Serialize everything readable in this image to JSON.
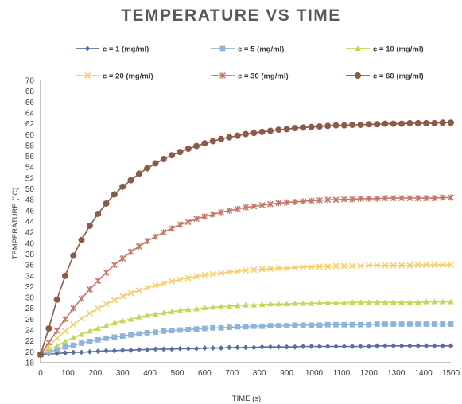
{
  "chart_data": {
    "type": "line",
    "title": "TEMPERATURE VS TIME",
    "xlabel": "TIME (s)",
    "ylabel": "TEMPERATURE (°C)",
    "xlim": [
      0,
      1500
    ],
    "ylim": [
      18,
      70
    ],
    "xticks": [
      0,
      100,
      200,
      300,
      400,
      500,
      600,
      700,
      800,
      900,
      1000,
      1100,
      1200,
      1300,
      1400,
      1500
    ],
    "yticks": [
      18,
      20,
      22,
      24,
      26,
      28,
      30,
      32,
      34,
      36,
      38,
      40,
      42,
      44,
      46,
      48,
      50,
      52,
      54,
      56,
      58,
      60,
      62,
      64,
      66,
      68,
      70
    ],
    "grid": false,
    "legend_position": "top",
    "x": [
      0,
      30,
      60,
      90,
      120,
      150,
      180,
      210,
      240,
      270,
      300,
      330,
      360,
      390,
      420,
      450,
      480,
      510,
      540,
      570,
      600,
      630,
      660,
      690,
      720,
      750,
      780,
      810,
      840,
      870,
      900,
      930,
      960,
      990,
      1020,
      1050,
      1080,
      1110,
      1140,
      1170,
      1200,
      1230,
      1260,
      1290,
      1320,
      1350,
      1380,
      1410,
      1440,
      1470,
      1500
    ],
    "series": [
      {
        "name": "c = 1 (mg/ml)",
        "color": "#5b6e9e",
        "marker": "diamond",
        "values": [
          19.5,
          19.6,
          19.7,
          19.8,
          19.9,
          19.9,
          20.0,
          20.1,
          20.2,
          20.2,
          20.3,
          20.3,
          20.4,
          20.4,
          20.5,
          20.5,
          20.5,
          20.6,
          20.6,
          20.6,
          20.7,
          20.7,
          20.7,
          20.8,
          20.8,
          20.8,
          20.8,
          20.9,
          20.9,
          20.9,
          20.9,
          20.9,
          21.0,
          21.0,
          21.0,
          21.0,
          21.0,
          21.0,
          21.0,
          21.0,
          21.0,
          21.1,
          21.1,
          21.1,
          21.1,
          21.1,
          21.1,
          21.1,
          21.1,
          21.1,
          21.1
        ]
      },
      {
        "name": "c = 5 (mg/ml)",
        "color": "#8fb3d9",
        "marker": "square",
        "values": [
          19.5,
          20.0,
          20.4,
          20.9,
          21.2,
          21.6,
          21.9,
          22.2,
          22.5,
          22.7,
          22.9,
          23.1,
          23.3,
          23.5,
          23.6,
          23.8,
          23.9,
          24.0,
          24.1,
          24.2,
          24.3,
          24.4,
          24.4,
          24.5,
          24.6,
          24.6,
          24.7,
          24.7,
          24.8,
          24.8,
          24.8,
          24.9,
          24.9,
          24.9,
          24.9,
          25.0,
          25.0,
          25.0,
          25.0,
          25.0,
          25.0,
          25.1,
          25.1,
          25.1,
          25.1,
          25.1,
          25.1,
          25.1,
          25.1,
          25.1,
          25.1
        ]
      },
      {
        "name": "c = 10 (mg/ml)",
        "color": "#c5d65a",
        "marker": "triangle",
        "values": [
          19.5,
          20.3,
          21.1,
          21.9,
          22.6,
          23.2,
          23.8,
          24.3,
          24.8,
          25.3,
          25.7,
          26.0,
          26.4,
          26.7,
          26.9,
          27.2,
          27.4,
          27.6,
          27.8,
          27.9,
          28.1,
          28.2,
          28.3,
          28.4,
          28.5,
          28.6,
          28.6,
          28.7,
          28.8,
          28.8,
          28.8,
          28.9,
          28.9,
          28.9,
          29.0,
          29.0,
          29.0,
          29.0,
          29.1,
          29.1,
          29.1,
          29.1,
          29.1,
          29.1,
          29.1,
          29.1,
          29.1,
          29.2,
          29.2,
          29.2,
          29.2
        ]
      },
      {
        "name": "c = 20 (mg/ml)",
        "color": "#f6cf6b",
        "marker": "x",
        "values": [
          19.5,
          21.1,
          22.5,
          23.8,
          25.0,
          26.1,
          27.1,
          28.0,
          28.8,
          29.5,
          30.2,
          30.8,
          31.3,
          31.8,
          32.2,
          32.6,
          33.0,
          33.3,
          33.6,
          33.9,
          34.1,
          34.3,
          34.5,
          34.7,
          34.8,
          35.0,
          35.1,
          35.2,
          35.3,
          35.4,
          35.4,
          35.5,
          35.6,
          35.6,
          35.7,
          35.7,
          35.8,
          35.8,
          35.8,
          35.8,
          35.9,
          35.9,
          35.9,
          35.9,
          35.9,
          35.9,
          36.0,
          36.0,
          36.0,
          36.0,
          36.0
        ]
      },
      {
        "name": "c = 30 (mg/ml)",
        "color": "#c4776a",
        "marker": "star",
        "values": [
          19.5,
          21.7,
          23.9,
          26.0,
          28.0,
          29.8,
          31.5,
          33.1,
          34.6,
          36.0,
          37.2,
          38.4,
          39.4,
          40.4,
          41.2,
          42.0,
          42.7,
          43.4,
          43.9,
          44.5,
          44.9,
          45.3,
          45.7,
          46.0,
          46.3,
          46.6,
          46.8,
          47.0,
          47.2,
          47.4,
          47.5,
          47.6,
          47.7,
          47.8,
          47.9,
          48.0,
          48.0,
          48.1,
          48.1,
          48.2,
          48.2,
          48.2,
          48.3,
          48.3,
          48.3,
          48.3,
          48.3,
          48.3,
          48.3,
          48.4,
          48.4
        ]
      },
      {
        "name": "c = 60 (mg/ml)",
        "color": "#8c5a4a",
        "marker": "circle",
        "values": [
          19.5,
          24.3,
          29.6,
          34.0,
          37.7,
          40.6,
          43.2,
          45.4,
          47.3,
          49.0,
          50.4,
          51.6,
          52.8,
          53.8,
          54.7,
          55.5,
          56.2,
          56.8,
          57.4,
          57.9,
          58.4,
          58.8,
          59.2,
          59.5,
          59.8,
          60.1,
          60.3,
          60.5,
          60.7,
          60.9,
          61.0,
          61.2,
          61.3,
          61.4,
          61.5,
          61.6,
          61.7,
          61.7,
          61.8,
          61.8,
          61.9,
          61.9,
          62.0,
          62.0,
          62.0,
          62.1,
          62.1,
          62.1,
          62.1,
          62.2,
          62.2
        ]
      }
    ]
  }
}
